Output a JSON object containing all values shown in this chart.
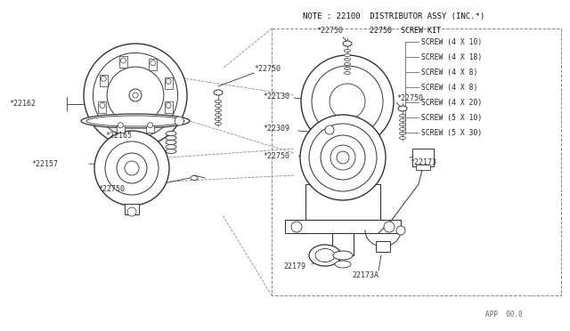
{
  "bg_color": "#ffffff",
  "draw_color": "#333333",
  "title": "NOTE : 22100  DISTRIBUTOR ASSY (INC.*)",
  "screw_kit_label": "22750  SCREW KIT",
  "screw_items": [
    "SCREW (4 X 10)",
    "SCREW (4 X 18)",
    "SCREW (4 X 8)",
    "SCREW (4 X 8)",
    "SCREW (4 X 20)",
    "SCREW (5 X 10)",
    "SCREW (5 X 30)"
  ],
  "footer_text": "APP  00.0"
}
